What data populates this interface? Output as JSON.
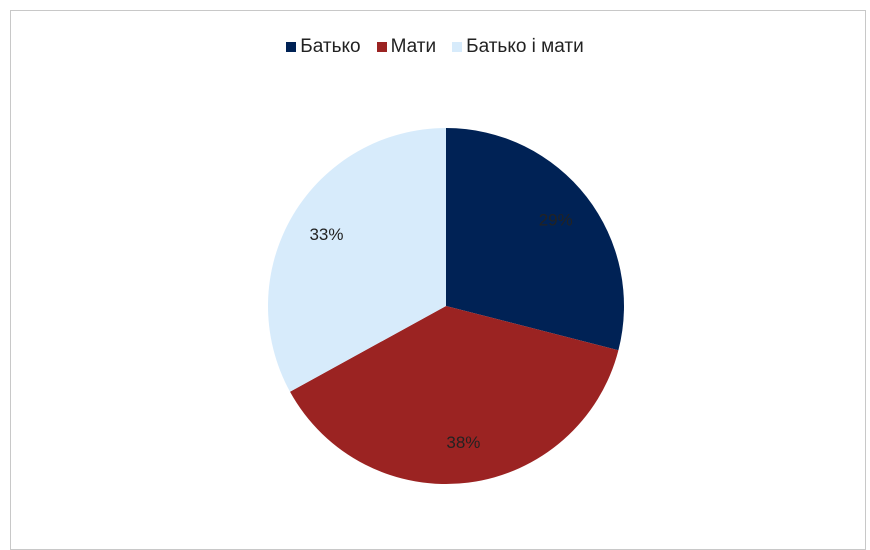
{
  "chart_data": {
    "type": "pie",
    "categories": [
      "Батько",
      "Мати",
      "Батько і мати"
    ],
    "values": [
      29,
      38,
      33
    ],
    "value_labels": [
      "29%",
      "38%",
      "33%"
    ],
    "colors": [
      "#002255",
      "#9b2322",
      "#d7ebfb"
    ],
    "legend": "top"
  }
}
